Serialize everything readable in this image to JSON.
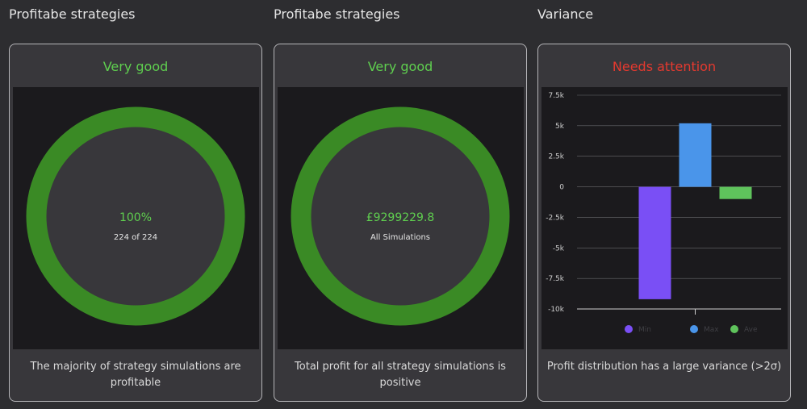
{
  "cards": [
    {
      "section_title": "Profitabe strategies",
      "status": "Very good",
      "donut_value": "100%",
      "donut_sub": "224 of 224",
      "fill_fraction": 1.0,
      "footer": "The majority of strategy simulations are profitable"
    },
    {
      "section_title": "Profitabe strategies",
      "status": "Very good",
      "donut_value": "£9299229.8",
      "donut_sub": "All Simulations",
      "fill_fraction": 1.0,
      "footer": "Total profit for all strategy simulations is positive"
    },
    {
      "section_title": "Variance",
      "status": "Needs attention",
      "footer": "Profit distribution has a large variance (>2σ)"
    }
  ],
  "colors": {
    "good": "#5fcf4f",
    "bad": "#e5392f",
    "ring": "#3a8a25",
    "min": "#7a4ff5",
    "max": "#4a95ea",
    "ave": "#5fc35c"
  },
  "chart_data": {
    "type": "bar",
    "categories": [
      ""
    ],
    "series": [
      {
        "name": "Min",
        "values": [
          -9200
        ]
      },
      {
        "name": "Max",
        "values": [
          5200
        ]
      },
      {
        "name": "Ave",
        "values": [
          -1000
        ]
      }
    ],
    "yticks": [
      "7.5k",
      "5k",
      "2.5k",
      "0",
      "-2.5k",
      "-5k",
      "-7.5k",
      "-10k"
    ],
    "ylim": [
      -10000,
      7500
    ],
    "grid": true,
    "legend": "bottom"
  }
}
